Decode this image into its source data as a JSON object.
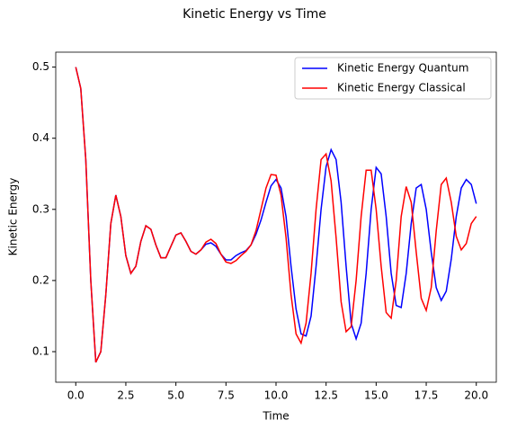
{
  "chart_data": {
    "type": "line",
    "title": "Kinetic Energy vs Time",
    "xlabel": "Time",
    "ylabel": "Kinetic Energy",
    "x": [
      0,
      0.25,
      0.5,
      0.75,
      1,
      1.25,
      1.5,
      1.75,
      2,
      2.25,
      2.5,
      2.75,
      3,
      3.25,
      3.5,
      3.75,
      4,
      4.25,
      4.5,
      4.75,
      5,
      5.25,
      5.5,
      5.75,
      6,
      6.25,
      6.5,
      6.75,
      7,
      7.25,
      7.5,
      7.75,
      8,
      8.25,
      8.5,
      8.75,
      9,
      9.25,
      9.5,
      9.75,
      10,
      10.25,
      10.5,
      10.75,
      11,
      11.25,
      11.5,
      11.75,
      12,
      12.25,
      12.5,
      12.75,
      13,
      13.25,
      13.5,
      13.75,
      14,
      14.25,
      14.5,
      14.75,
      15,
      15.25,
      15.5,
      15.75,
      16,
      16.25,
      16.5,
      16.75,
      17,
      17.25,
      17.5,
      17.75,
      18,
      18.25,
      18.5,
      18.75,
      19,
      19.25,
      19.5,
      19.75,
      20
    ],
    "series": [
      {
        "name": "Kinetic Energy Quantum",
        "color": "#0000ff",
        "values": [
          0.5,
          0.47,
          0.37,
          0.2,
          0.085,
          0.1,
          0.18,
          0.28,
          0.32,
          0.29,
          0.235,
          0.21,
          0.22,
          0.255,
          0.277,
          0.272,
          0.25,
          0.232,
          0.232,
          0.248,
          0.264,
          0.267,
          0.255,
          0.241,
          0.237,
          0.243,
          0.251,
          0.253,
          0.248,
          0.237,
          0.229,
          0.229,
          0.235,
          0.239,
          0.242,
          0.25,
          0.265,
          0.285,
          0.31,
          0.333,
          0.342,
          0.33,
          0.29,
          0.22,
          0.16,
          0.125,
          0.122,
          0.15,
          0.22,
          0.3,
          0.36,
          0.384,
          0.37,
          0.31,
          0.22,
          0.14,
          0.118,
          0.14,
          0.21,
          0.3,
          0.359,
          0.35,
          0.29,
          0.21,
          0.165,
          0.162,
          0.21,
          0.28,
          0.33,
          0.335,
          0.3,
          0.24,
          0.19,
          0.172,
          0.185,
          0.23,
          0.29,
          0.33,
          0.342,
          0.335,
          0.308
        ]
      },
      {
        "name": "Kinetic Energy Classical",
        "color": "#ff0000",
        "values": [
          0.5,
          0.47,
          0.37,
          0.2,
          0.085,
          0.1,
          0.18,
          0.28,
          0.32,
          0.29,
          0.235,
          0.21,
          0.22,
          0.255,
          0.277,
          0.272,
          0.25,
          0.232,
          0.232,
          0.248,
          0.264,
          0.267,
          0.255,
          0.241,
          0.237,
          0.243,
          0.254,
          0.258,
          0.252,
          0.237,
          0.226,
          0.224,
          0.228,
          0.235,
          0.241,
          0.25,
          0.27,
          0.3,
          0.33,
          0.349,
          0.348,
          0.32,
          0.26,
          0.18,
          0.125,
          0.112,
          0.14,
          0.21,
          0.3,
          0.37,
          0.378,
          0.34,
          0.26,
          0.17,
          0.128,
          0.135,
          0.2,
          0.29,
          0.355,
          0.355,
          0.3,
          0.22,
          0.155,
          0.147,
          0.2,
          0.29,
          0.332,
          0.31,
          0.24,
          0.175,
          0.158,
          0.19,
          0.27,
          0.335,
          0.344,
          0.31,
          0.262,
          0.243,
          0.252,
          0.28,
          0.29
        ]
      }
    ],
    "xlim": [
      -1,
      21
    ],
    "ylim": [
      0.057,
      0.521
    ],
    "xticks": [
      {
        "value": 0,
        "label": "0.0"
      },
      2.5,
      {
        "value": 5,
        "label": "5.0"
      },
      7.5,
      {
        "value": 10,
        "label": "10.0"
      },
      12.5,
      {
        "value": 15,
        "label": "15.0"
      },
      17.5,
      {
        "value": 20,
        "label": "20.0"
      }
    ],
    "yticks": [
      0.1,
      0.2,
      0.3,
      0.4,
      0.5
    ],
    "legend": "upper right",
    "grid": false
  }
}
